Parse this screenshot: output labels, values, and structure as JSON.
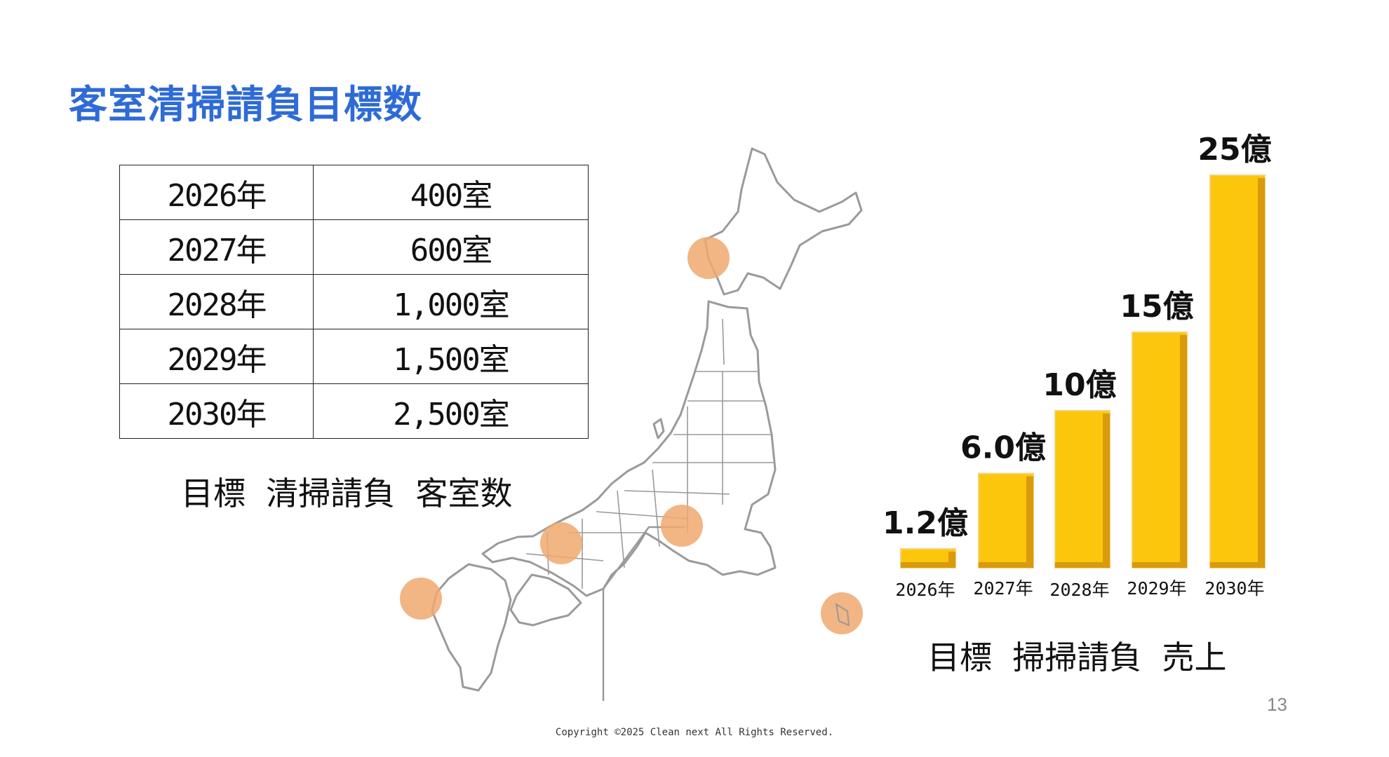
{
  "slide": {
    "title": "客室清掃請負目標数",
    "page_number": "13",
    "copyright": "Copyright ©2025 Clean next All Rights Reserved."
  },
  "rooms_table": {
    "rows": [
      {
        "year": "2026年",
        "rooms": "400室"
      },
      {
        "year": "2027年",
        "rooms": "600室"
      },
      {
        "year": "2028年",
        "rooms": "1,000室"
      },
      {
        "year": "2029年",
        "rooms": "1,500室"
      },
      {
        "year": "2030年",
        "rooms": "2,500室"
      }
    ],
    "caption": "目標  清掃請負  客室数"
  },
  "chart_data": {
    "type": "bar",
    "title": "目標  掃掃請負  売上",
    "categories": [
      "2026年",
      "2027年",
      "2028年",
      "2029年",
      "2030年"
    ],
    "values": [
      1.2,
      6.0,
      10,
      15,
      25
    ],
    "data_labels": [
      "1.2億",
      "6.0億",
      "10億",
      "15億",
      "25億"
    ],
    "unit": "億",
    "bar_color": "#fcc60d",
    "bar_shade_color": "#d99a0c",
    "xlabel": "",
    "ylabel": ""
  },
  "map": {
    "highlight_color": "#f0a86e"
  }
}
